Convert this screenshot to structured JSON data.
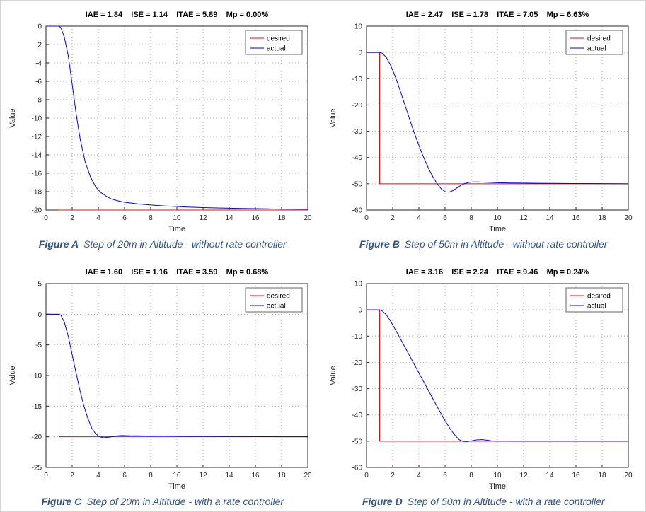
{
  "style": {
    "axis_color": "#262626",
    "grid_color": "#b5b5b5",
    "legend_border": "#666666",
    "caption_color": "#2f5496",
    "plot_bg": "#ffffff"
  },
  "chart_data": [
    {
      "type": "line",
      "panel": "A",
      "metrics": [
        "IAE = 1.84",
        "ISE = 1.14",
        "ITAE = 5.89",
        "Mp = 0.00%"
      ],
      "xlabel": "Time",
      "ylabel": "Value",
      "xlim": [
        0,
        20
      ],
      "ylim": [
        -20,
        0
      ],
      "xticks": [
        0,
        2,
        4,
        6,
        8,
        10,
        12,
        14,
        16,
        18,
        20
      ],
      "yticks": [
        0,
        -2,
        -4,
        -6,
        -8,
        -10,
        -12,
        -14,
        -16,
        -18,
        -20
      ],
      "legend_position": "top-right",
      "grid": true,
      "series": [
        {
          "name": "desired",
          "color": "#ff0000",
          "x": [
            0,
            1,
            1,
            20
          ],
          "y": [
            0,
            0,
            -20,
            -20
          ]
        },
        {
          "name": "actual",
          "color": "#0000ff",
          "x": [
            0,
            1,
            1.15,
            1.4,
            1.7,
            2,
            2.3,
            2.6,
            3,
            3.4,
            3.8,
            4.2,
            4.6,
            5,
            5.5,
            6,
            7,
            8,
            9,
            10,
            11,
            12,
            13,
            14,
            15,
            16,
            17,
            18,
            19,
            20
          ],
          "y": [
            0,
            0,
            -0.2,
            -1.2,
            -3.2,
            -6.3,
            -9.5,
            -12.2,
            -14.8,
            -16.4,
            -17.5,
            -18.1,
            -18.5,
            -18.8,
            -19.0,
            -19.15,
            -19.33,
            -19.45,
            -19.55,
            -19.62,
            -19.68,
            -19.73,
            -19.77,
            -19.8,
            -19.83,
            -19.85,
            -19.87,
            -19.89,
            -19.9,
            -19.91
          ]
        }
      ],
      "caption_label": "Figure A",
      "caption_text": "Step of 20m in Altitude - without rate controller"
    },
    {
      "type": "line",
      "panel": "B",
      "metrics": [
        "IAE = 2.47",
        "ISE = 1.78",
        "ITAE = 7.05",
        "Mp = 6.63%"
      ],
      "xlabel": "Time",
      "ylabel": "Value",
      "xlim": [
        0,
        20
      ],
      "ylim": [
        -60,
        10
      ],
      "xticks": [
        0,
        2,
        4,
        6,
        8,
        10,
        12,
        14,
        16,
        18,
        20
      ],
      "yticks": [
        10,
        0,
        -10,
        -20,
        -30,
        -40,
        -50,
        -60
      ],
      "legend_position": "top-right",
      "grid": true,
      "series": [
        {
          "name": "desired",
          "color": "#ff0000",
          "x": [
            0,
            1,
            1,
            20
          ],
          "y": [
            0,
            0,
            -50,
            -50
          ]
        },
        {
          "name": "actual",
          "color": "#0000ff",
          "x": [
            0,
            1,
            1.2,
            1.5,
            1.8,
            2.1,
            2.4,
            2.7,
            3,
            3.3,
            3.6,
            3.9,
            4.2,
            4.5,
            4.8,
            5.1,
            5.4,
            5.7,
            6,
            6.3,
            6.6,
            6.9,
            7.2,
            7.5,
            7.8,
            8.1,
            8.5,
            9,
            9.5,
            10,
            11,
            12,
            13,
            14,
            16,
            18,
            20
          ],
          "y": [
            0,
            0,
            -0.3,
            -1.8,
            -4.5,
            -8,
            -12,
            -16.5,
            -21,
            -25.5,
            -30,
            -34,
            -38,
            -41.5,
            -44.8,
            -47.6,
            -50,
            -51.9,
            -53,
            -53.2,
            -52.6,
            -51.6,
            -50.6,
            -49.9,
            -49.5,
            -49.3,
            -49.3,
            -49.4,
            -49.5,
            -49.6,
            -49.7,
            -49.75,
            -49.8,
            -49.85,
            -49.9,
            -49.95,
            -50
          ]
        }
      ],
      "caption_label": "Figure B",
      "caption_text": "Step of 50m in Altitude - without rate controller"
    },
    {
      "type": "line",
      "panel": "C",
      "metrics": [
        "IAE = 1.60",
        "ISE = 1.16",
        "ITAE = 3.59",
        "Mp = 0.68%"
      ],
      "xlabel": "Time",
      "ylabel": "Value",
      "xlim": [
        0,
        20
      ],
      "ylim": [
        -25,
        5
      ],
      "xticks": [
        0,
        2,
        4,
        6,
        8,
        10,
        12,
        14,
        16,
        18,
        20
      ],
      "yticks": [
        5,
        0,
        -5,
        -10,
        -15,
        -20,
        -25
      ],
      "legend_position": "top-right",
      "grid": true,
      "series": [
        {
          "name": "desired",
          "color": "#ff0000",
          "x": [
            0,
            1,
            1,
            20
          ],
          "y": [
            0,
            0,
            -20,
            -20
          ]
        },
        {
          "name": "actual",
          "color": "#0000ff",
          "x": [
            0,
            1,
            1.15,
            1.4,
            1.7,
            2,
            2.3,
            2.6,
            2.9,
            3.2,
            3.5,
            3.8,
            4.1,
            4.4,
            4.7,
            5,
            5.4,
            5.8,
            6.2,
            6.6,
            7,
            7.5,
            8,
            9,
            10,
            11,
            12,
            13,
            14,
            16,
            18,
            20
          ],
          "y": [
            0,
            0,
            -0.2,
            -1.3,
            -3.6,
            -6.6,
            -9.6,
            -12.5,
            -15,
            -17,
            -18.6,
            -19.5,
            -20,
            -20.15,
            -20.1,
            -20,
            -19.85,
            -19.8,
            -19.82,
            -19.85,
            -19.83,
            -19.86,
            -19.88,
            -19.87,
            -19.9,
            -19.92,
            -19.91,
            -19.94,
            -19.95,
            -19.97,
            -19.99,
            -20
          ]
        }
      ],
      "caption_label": "Figure C",
      "caption_text": "Step of 20m in Altitude - with a rate controller"
    },
    {
      "type": "line",
      "panel": "D",
      "metrics": [
        "IAE = 3.16",
        "ISE = 2.24",
        "ITAE = 9.46",
        "Mp = 0.24%"
      ],
      "xlabel": "Time",
      "ylabel": "Value",
      "xlim": [
        0,
        20
      ],
      "ylim": [
        -60,
        10
      ],
      "xticks": [
        0,
        2,
        4,
        6,
        8,
        10,
        12,
        14,
        16,
        18,
        20
      ],
      "yticks": [
        10,
        0,
        -10,
        -20,
        -30,
        -40,
        -50,
        -60
      ],
      "legend_position": "top-right",
      "grid": true,
      "series": [
        {
          "name": "desired",
          "color": "#ff0000",
          "x": [
            0,
            1,
            1,
            20
          ],
          "y": [
            0,
            0,
            -50,
            -50
          ]
        },
        {
          "name": "actual",
          "color": "#0000ff",
          "x": [
            0,
            1,
            1.2,
            1.5,
            1.8,
            2.1,
            2.5,
            3,
            3.5,
            4,
            4.5,
            5,
            5.5,
            6,
            6.4,
            6.8,
            7.1,
            7.4,
            7.7,
            8,
            8.4,
            8.8,
            9.2,
            9.6,
            10,
            10.5,
            11,
            12,
            14,
            16,
            18,
            20
          ],
          "y": [
            0,
            0,
            -0.4,
            -1.8,
            -4,
            -6.6,
            -10.2,
            -14.8,
            -19.4,
            -24,
            -28.6,
            -33.2,
            -37.8,
            -42.2,
            -45.4,
            -48,
            -49.5,
            -50.1,
            -50.15,
            -49.9,
            -49.5,
            -49.4,
            -49.6,
            -49.9,
            -50,
            -49.95,
            -50,
            -50,
            -50,
            -50,
            -50,
            -50
          ]
        }
      ],
      "caption_label": "Figure D",
      "caption_text": "Step of 50m in Altitude - with a rate controller"
    }
  ]
}
